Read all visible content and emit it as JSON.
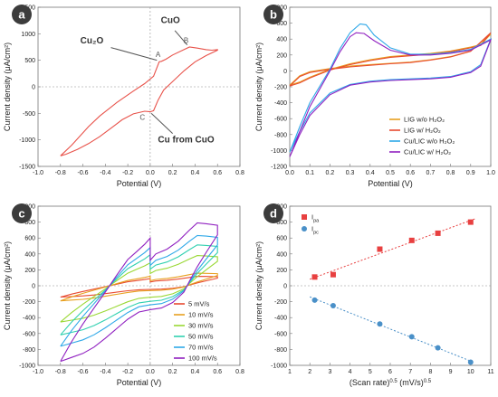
{
  "panels": [
    {
      "id": "a",
      "type": "line",
      "panel_label": "a",
      "xlabel": "Potential (V)",
      "ylabel": "Current density (μA/cm²)",
      "xlim": [
        -1.0,
        0.8
      ],
      "ylim": [
        -1500,
        1500
      ],
      "xticks": [
        "-1.0",
        "-0.8",
        "-0.6",
        "-0.4",
        "-0.2",
        "0.0",
        "0.2",
        "0.4",
        "0.6",
        "0.8"
      ],
      "yticks": [
        "-1500",
        "-1000",
        "-500",
        "0",
        "500",
        "1000",
        "1500"
      ],
      "annotations": [
        {
          "text": "CuO",
          "bold": true
        },
        {
          "text": "Cu₂O",
          "bold": true
        },
        {
          "text": "Cu from CuO",
          "bold": true
        },
        {
          "text": "A",
          "bold": false
        },
        {
          "text": "B",
          "bold": false
        },
        {
          "text": "C",
          "bold": false
        }
      ],
      "series": [
        {
          "color": "#e8524a",
          "values": [
            [
              -0.8,
              -1300
            ],
            [
              -0.7,
              -1100
            ],
            [
              -0.55,
              -750
            ],
            [
              -0.45,
              -550
            ],
            [
              -0.3,
              -300
            ],
            [
              -0.15,
              -80
            ],
            [
              -0.05,
              60
            ],
            [
              0.03,
              200
            ],
            [
              0.08,
              470
            ],
            [
              0.1,
              480
            ],
            [
              0.14,
              520
            ],
            [
              0.2,
              600
            ],
            [
              0.3,
              700
            ],
            [
              0.35,
              750
            ],
            [
              0.42,
              730
            ],
            [
              0.5,
              700
            ],
            [
              0.55,
              690
            ],
            [
              0.6,
              700
            ],
            [
              0.6,
              690
            ],
            [
              0.5,
              590
            ],
            [
              0.4,
              470
            ],
            [
              0.3,
              300
            ],
            [
              0.2,
              100
            ],
            [
              0.12,
              -60
            ],
            [
              0.07,
              -250
            ],
            [
              0.03,
              -450
            ],
            [
              0.0,
              -470
            ],
            [
              -0.05,
              -460
            ],
            [
              -0.15,
              -510
            ],
            [
              -0.25,
              -620
            ],
            [
              -0.35,
              -780
            ],
            [
              -0.45,
              -940
            ],
            [
              -0.55,
              -1070
            ],
            [
              -0.65,
              -1180
            ],
            [
              -0.75,
              -1270
            ],
            [
              -0.8,
              -1300
            ]
          ]
        }
      ]
    },
    {
      "id": "b",
      "type": "line",
      "panel_label": "b",
      "xlabel": "Potential (V)",
      "ylabel": "Current density (μA/cm²)",
      "xlim": [
        0.0,
        1.0
      ],
      "ylim": [
        -1200,
        800
      ],
      "xticks": [
        "0.0",
        "0.1",
        "0.2",
        "0.3",
        "0.4",
        "0.5",
        "0.6",
        "0.7",
        "0.8",
        "0.9",
        "1.0"
      ],
      "yticks": [
        "-1200",
        "-1000",
        "-800",
        "-600",
        "-400",
        "-200",
        "0",
        "200",
        "400",
        "600",
        "800"
      ],
      "legend": "bottom-right",
      "series": [
        {
          "name": "LIG w/o H₂O₂",
          "color": "#e8a020",
          "values": [
            [
              0.0,
              -180
            ],
            [
              0.05,
              -60
            ],
            [
              0.1,
              -10
            ],
            [
              0.2,
              30
            ],
            [
              0.3,
              60
            ],
            [
              0.4,
              80
            ],
            [
              0.5,
              95
            ],
            [
              0.6,
              110
            ],
            [
              0.7,
              140
            ],
            [
              0.8,
              180
            ],
            [
              0.9,
              250
            ],
            [
              1.0,
              460
            ],
            [
              0.95,
              330
            ],
            [
              0.9,
              300
            ],
            [
              0.8,
              250
            ],
            [
              0.7,
              220
            ],
            [
              0.6,
              200
            ],
            [
              0.5,
              180
            ],
            [
              0.4,
              140
            ],
            [
              0.3,
              90
            ],
            [
              0.2,
              20
            ],
            [
              0.1,
              -80
            ],
            [
              0.05,
              -140
            ],
            [
              0.0,
              -180
            ]
          ]
        },
        {
          "name": "LIG w/ H₂O₂",
          "color": "#e84a30",
          "values": [
            [
              0.0,
              -190
            ],
            [
              0.05,
              -70
            ],
            [
              0.1,
              -20
            ],
            [
              0.2,
              20
            ],
            [
              0.3,
              50
            ],
            [
              0.4,
              70
            ],
            [
              0.5,
              90
            ],
            [
              0.6,
              105
            ],
            [
              0.7,
              135
            ],
            [
              0.8,
              175
            ],
            [
              0.9,
              245
            ],
            [
              1.0,
              480
            ],
            [
              0.95,
              320
            ],
            [
              0.9,
              290
            ],
            [
              0.8,
              240
            ],
            [
              0.7,
              210
            ],
            [
              0.6,
              190
            ],
            [
              0.5,
              170
            ],
            [
              0.4,
              130
            ],
            [
              0.3,
              80
            ],
            [
              0.2,
              10
            ],
            [
              0.1,
              -90
            ],
            [
              0.05,
              -150
            ],
            [
              0.0,
              -190
            ]
          ]
        },
        {
          "name": "Cu/LIC w/o H₂O₂",
          "color": "#2ea8e8",
          "values": [
            [
              0.0,
              -1020
            ],
            [
              0.05,
              -700
            ],
            [
              0.1,
              -400
            ],
            [
              0.2,
              20
            ],
            [
              0.25,
              280
            ],
            [
              0.3,
              480
            ],
            [
              0.35,
              590
            ],
            [
              0.38,
              580
            ],
            [
              0.42,
              450
            ],
            [
              0.5,
              290
            ],
            [
              0.6,
              210
            ],
            [
              0.7,
              210
            ],
            [
              0.8,
              230
            ],
            [
              0.9,
              270
            ],
            [
              1.0,
              400
            ],
            [
              0.95,
              80
            ],
            [
              0.9,
              -10
            ],
            [
              0.8,
              -70
            ],
            [
              0.7,
              -90
            ],
            [
              0.6,
              -100
            ],
            [
              0.5,
              -110
            ],
            [
              0.4,
              -130
            ],
            [
              0.3,
              -170
            ],
            [
              0.2,
              -280
            ],
            [
              0.1,
              -530
            ],
            [
              0.05,
              -760
            ],
            [
              0.0,
              -1020
            ]
          ]
        },
        {
          "name": "Cu/LIC w/ H₂O₂",
          "color": "#9020c0",
          "values": [
            [
              0.0,
              -1080
            ],
            [
              0.05,
              -760
            ],
            [
              0.1,
              -450
            ],
            [
              0.2,
              0
            ],
            [
              0.25,
              240
            ],
            [
              0.3,
              430
            ],
            [
              0.33,
              480
            ],
            [
              0.37,
              470
            ],
            [
              0.42,
              380
            ],
            [
              0.5,
              260
            ],
            [
              0.6,
              200
            ],
            [
              0.7,
              200
            ],
            [
              0.8,
              220
            ],
            [
              0.9,
              260
            ],
            [
              1.0,
              390
            ],
            [
              0.95,
              60
            ],
            [
              0.9,
              -20
            ],
            [
              0.8,
              -80
            ],
            [
              0.7,
              -100
            ],
            [
              0.6,
              -110
            ],
            [
              0.5,
              -120
            ],
            [
              0.4,
              -140
            ],
            [
              0.3,
              -180
            ],
            [
              0.2,
              -300
            ],
            [
              0.1,
              -560
            ],
            [
              0.05,
              -800
            ],
            [
              0.0,
              -1080
            ]
          ]
        }
      ]
    },
    {
      "id": "c",
      "type": "line",
      "panel_label": "c",
      "xlabel": "Potential (V)",
      "ylabel": "Current density (μA/cm²)",
      "xlim": [
        -1.0,
        0.8
      ],
      "ylim": [
        -1000,
        1000
      ],
      "xticks": [
        "-1.0",
        "-0.8",
        "-0.6",
        "-0.4",
        "-0.2",
        "0.0",
        "0.2",
        "0.4",
        "0.6",
        "0.8"
      ],
      "yticks": [
        "-1000",
        "-800",
        "-600",
        "-400",
        "-200",
        "0",
        "200",
        "400",
        "600",
        "800",
        "1000"
      ],
      "legend": "bottom-right",
      "series": [
        {
          "name": "5 mV/s",
          "color": "#e84a30",
          "scale": 0.15
        },
        {
          "name": "10 mV/s",
          "color": "#e8a020",
          "scale": 0.2
        },
        {
          "name": "30 mV/s",
          "color": "#9ad834",
          "scale": 0.48
        },
        {
          "name": "50 mV/s",
          "color": "#30d0b0",
          "scale": 0.65
        },
        {
          "name": "70 mV/s",
          "color": "#2ea8e8",
          "scale": 0.8
        },
        {
          "name": "100 mV/s",
          "color": "#9020c0",
          "scale": 1.0
        }
      ]
    },
    {
      "id": "d",
      "type": "scatter",
      "panel_label": "d",
      "xlabel_parts": [
        "(Scan rate)",
        "0.5",
        " (mV/s)",
        "0.5"
      ],
      "ylabel": "Current density (μA/cm²)",
      "xlim": [
        1,
        11
      ],
      "ylim": [
        -1000,
        1000
      ],
      "xticks": [
        "1",
        "2",
        "3",
        "4",
        "5",
        "6",
        "7",
        "8",
        "9",
        "10",
        "11"
      ],
      "yticks": [
        "-1000",
        "-800",
        "-600",
        "-400",
        "-200",
        "0",
        "200",
        "400",
        "600",
        "800",
        "1000"
      ],
      "legend": "top-left",
      "series": [
        {
          "name": "I",
          "sub": "pa",
          "color": "#e84040",
          "marker": "square",
          "x": [
            2.24,
            3.16,
            5.48,
            7.07,
            8.37,
            10.0
          ],
          "values": [
            110,
            140,
            460,
            570,
            660,
            800
          ]
        },
        {
          "name": "I",
          "sub": "pc",
          "color": "#4a90c8",
          "marker": "circle",
          "x": [
            2.24,
            3.16,
            5.48,
            7.07,
            8.37,
            10.0
          ],
          "values": [
            -180,
            -250,
            -480,
            -640,
            -780,
            -960
          ]
        }
      ]
    }
  ],
  "colors": {
    "badge": "#3c3c3c",
    "zero_line": "#909090"
  }
}
